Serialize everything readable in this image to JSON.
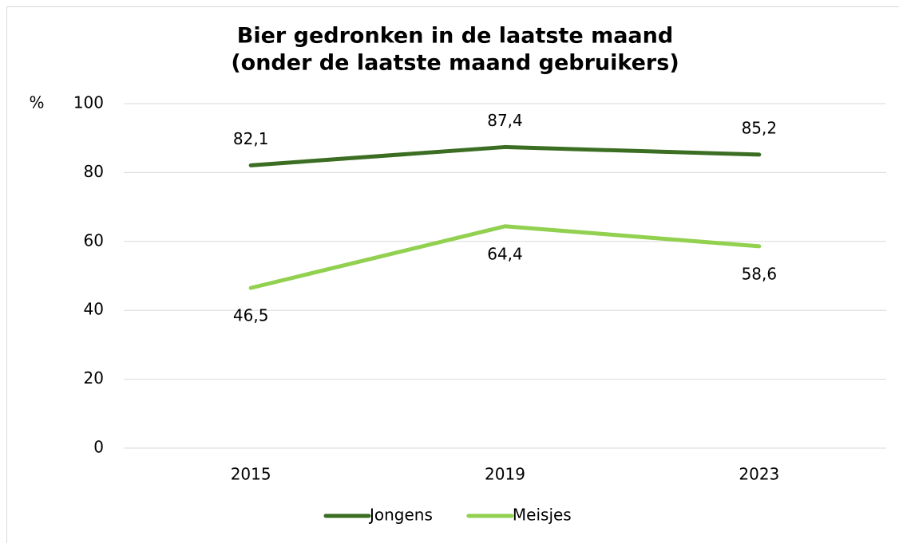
{
  "chart_data": {
    "type": "line",
    "title": [
      "Bier gedronken in de laatste maand",
      "(onder de laatste maand gebruikers)"
    ],
    "y_label": "%",
    "categories": [
      "2015",
      "2019",
      "2023"
    ],
    "series": [
      {
        "name": "Jongens",
        "color": "#3b6e22",
        "values": [
          82.1,
          87.4,
          85.2
        ],
        "value_labels": [
          "82,1",
          "87,4",
          "85,2"
        ],
        "label_position": "above"
      },
      {
        "name": "Meisjes",
        "color": "#92d050",
        "values": [
          46.5,
          64.4,
          58.6
        ],
        "value_labels": [
          "46,5",
          "64,4",
          "58,6"
        ],
        "label_position": "below"
      }
    ],
    "ylim": [
      0,
      100
    ],
    "yticks": [
      0,
      20,
      40,
      60,
      80,
      100
    ],
    "grid": true,
    "legend": "bottom"
  }
}
